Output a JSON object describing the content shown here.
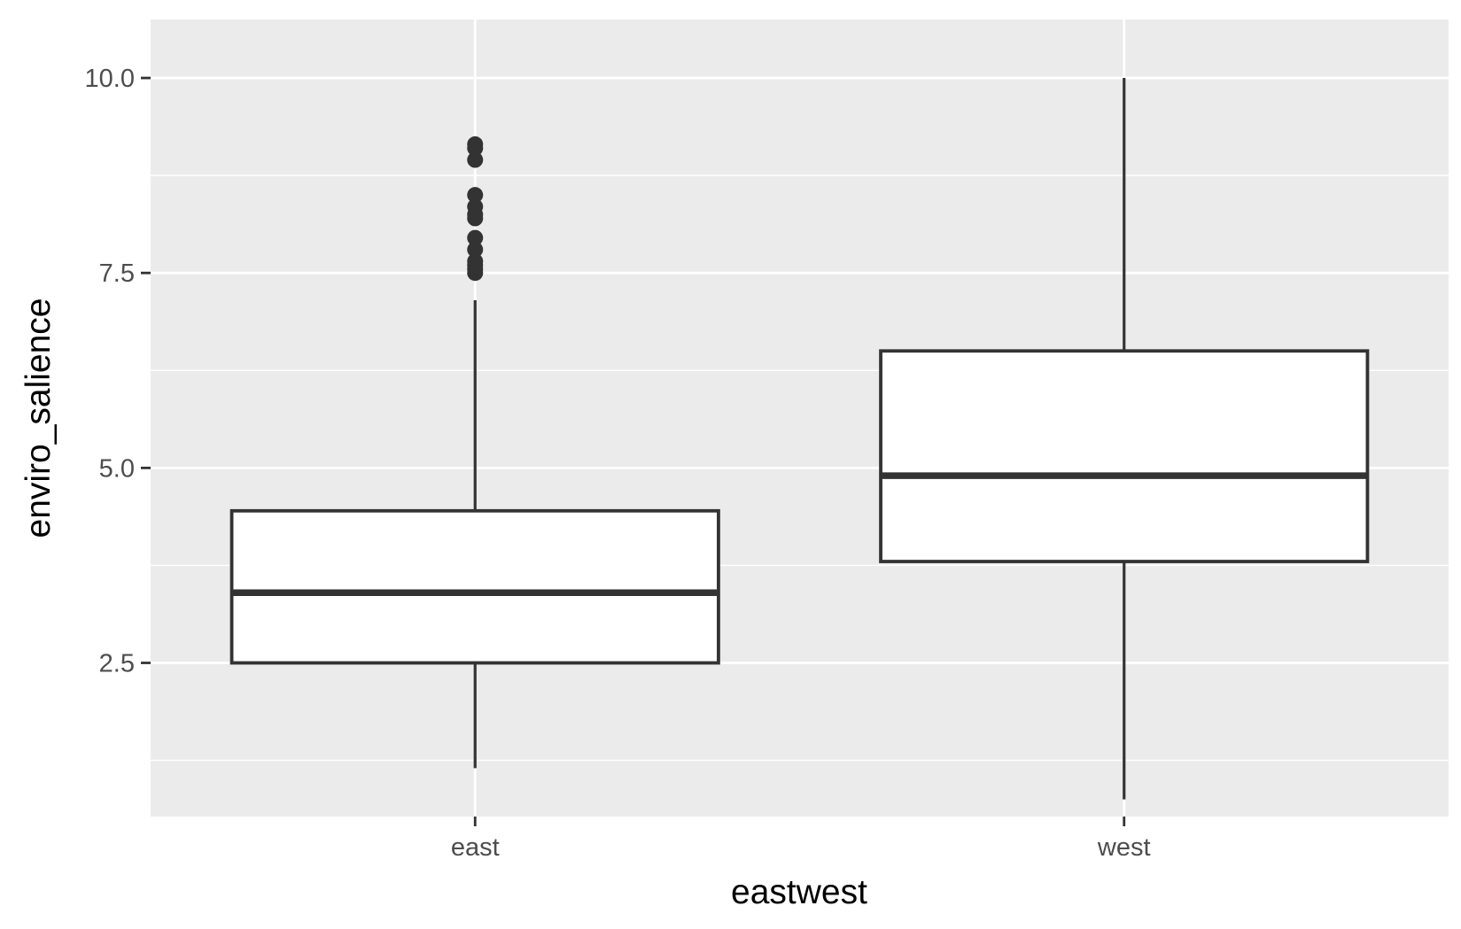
{
  "chart_data": {
    "type": "boxplot",
    "title": "",
    "xlabel": "eastwest",
    "ylabel": "enviro_salience",
    "categories": [
      "east",
      "west"
    ],
    "ylim": [
      0.53,
      10.75
    ],
    "y_ticks": [
      2.5,
      5.0,
      7.5,
      10.0
    ],
    "y_tick_labels": [
      "2.5",
      "5.0",
      "7.5",
      "10.0"
    ],
    "grid": true,
    "legend": "none",
    "boxes": [
      {
        "category": "east",
        "whisker_low": 1.15,
        "q1": 2.5,
        "median": 3.4,
        "q3": 4.45,
        "whisker_high": 7.15,
        "outliers": [
          7.5,
          7.55,
          7.6,
          7.65,
          7.8,
          7.95,
          8.2,
          8.25,
          8.35,
          8.5,
          8.95,
          9.1,
          9.15
        ]
      },
      {
        "category": "west",
        "whisker_low": 0.75,
        "q1": 3.8,
        "median": 4.9,
        "q3": 6.5,
        "whisker_high": 10.0,
        "outliers": []
      }
    ],
    "colors": {
      "panel_background": "#ebebeb",
      "grid": "#ffffff",
      "box_fill": "#ffffff",
      "box_line": "#333333",
      "tick": "#333333"
    }
  }
}
